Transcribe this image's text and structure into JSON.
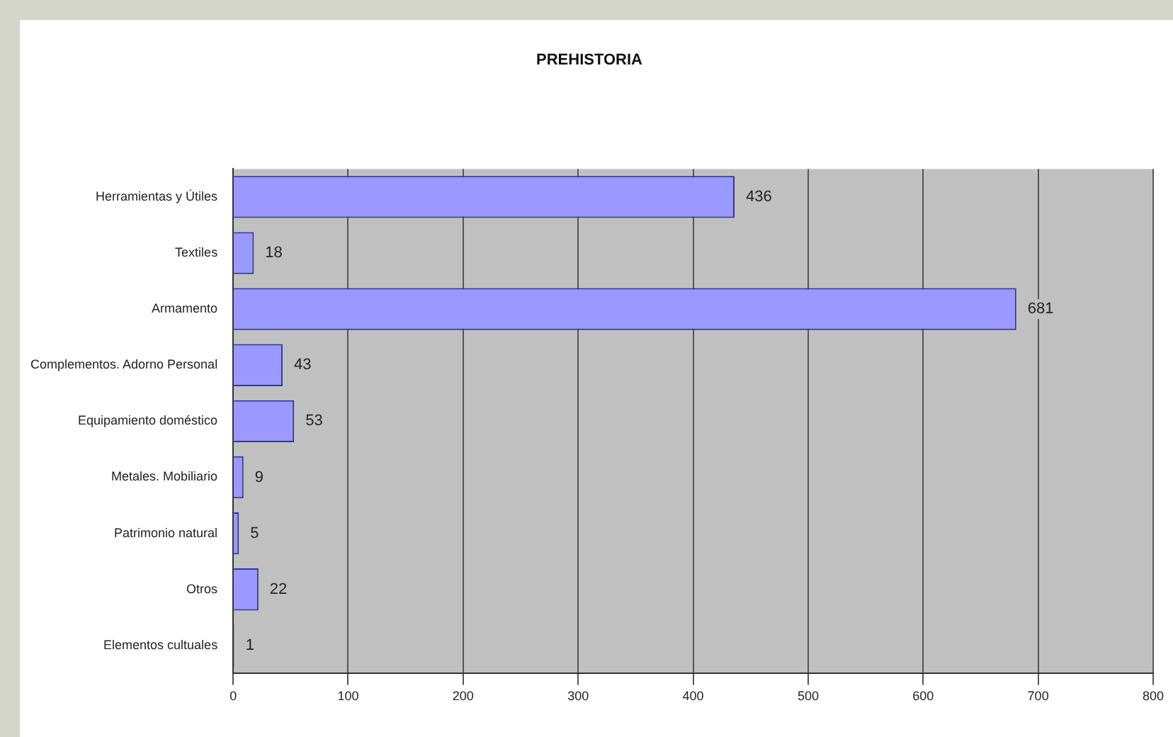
{
  "chart_data": {
    "type": "bar",
    "orientation": "horizontal",
    "title": "PREHISTORIA",
    "categories": [
      "Herramientas y Útiles",
      "Textiles",
      "Armamento",
      "Complementos. Adorno Personal",
      "Equipamiento doméstico",
      "Metales. Mobiliario",
      "Patrimonio natural",
      "Otros",
      "Elementos cultuales"
    ],
    "values": [
      436,
      18,
      681,
      43,
      53,
      9,
      5,
      22,
      1
    ],
    "color": "#9999ff",
    "xlim": [
      0,
      800
    ],
    "xticks": [
      0,
      100,
      200,
      300,
      400,
      500,
      600,
      700,
      800
    ],
    "grid": "x",
    "legend": false,
    "data_labels": true
  }
}
